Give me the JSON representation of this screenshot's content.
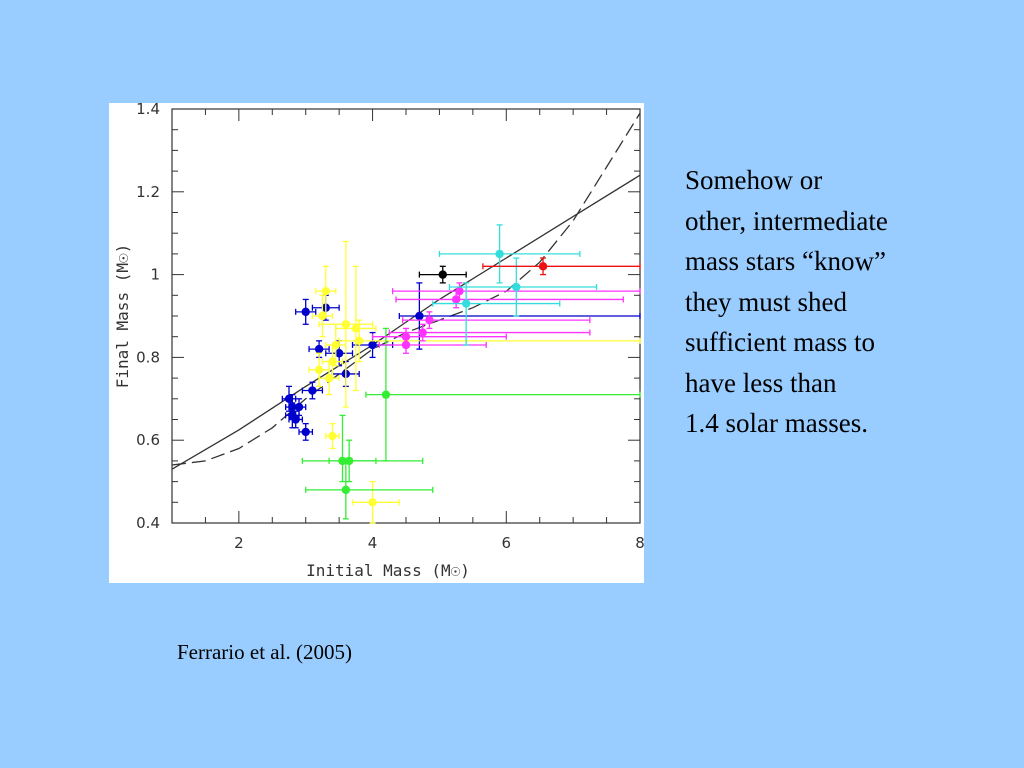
{
  "slide": {
    "background": "#99ccff",
    "body_lines": [
      "Somehow or",
      "other, intermediate",
      "mass stars “know”",
      "they must shed",
      "sufficient mass to",
      "have less than",
      "1.4 solar masses."
    ],
    "citation": "Ferrario et al. (2005)"
  },
  "chart_data": {
    "type": "scatter",
    "xlabel": "Initial Mass (M☉)",
    "ylabel": "Final Mass (M☉)",
    "xlim": [
      1,
      8
    ],
    "ylim": [
      0.4,
      1.4
    ],
    "x_ticks": [
      2,
      4,
      6,
      8
    ],
    "x_tick_labels": [
      "2",
      "4",
      "6",
      "8"
    ],
    "y_ticks": [
      0.4,
      0.6,
      0.8,
      1.0,
      1.2,
      1.4
    ],
    "y_tick_labels": [
      "0.4",
      "0.6",
      "0.8",
      "1",
      "1.2",
      "1.4"
    ],
    "grid": false,
    "curves": [
      {
        "style": "solid",
        "color": "#333333",
        "x": [
          1,
          2,
          3,
          4,
          5,
          6,
          7,
          8
        ],
        "y": [
          0.53,
          0.625,
          0.73,
          0.83,
          0.94,
          1.04,
          1.14,
          1.24
        ]
      },
      {
        "style": "dashed",
        "color": "#333333",
        "x": [
          1,
          1.5,
          2,
          2.5,
          3,
          3.5,
          4,
          4.5,
          5,
          5.5,
          6,
          6.5,
          7,
          7.5,
          8
        ],
        "y": [
          0.54,
          0.55,
          0.58,
          0.63,
          0.7,
          0.76,
          0.82,
          0.86,
          0.89,
          0.92,
          0.96,
          1.03,
          1.13,
          1.26,
          1.39
        ]
      }
    ],
    "points": [
      {
        "color": "#0000cc",
        "x": 2.75,
        "y": 0.7,
        "xerr": [
          0.1,
          0.1
        ],
        "yerr": [
          0.03,
          0.03
        ]
      },
      {
        "color": "#0000cc",
        "x": 2.8,
        "y": 0.68,
        "xerr": [
          0.1,
          0.1
        ],
        "yerr": [
          0.03,
          0.03
        ]
      },
      {
        "color": "#0000cc",
        "x": 2.8,
        "y": 0.66,
        "xerr": [
          0.1,
          0.1
        ],
        "yerr": [
          0.03,
          0.03
        ]
      },
      {
        "color": "#0000cc",
        "x": 2.85,
        "y": 0.65,
        "xerr": [
          0.1,
          0.1
        ],
        "yerr": [
          0.02,
          0.02
        ]
      },
      {
        "color": "#0000cc",
        "x": 2.9,
        "y": 0.68,
        "xerr": [
          0.1,
          0.1
        ],
        "yerr": [
          0.02,
          0.02
        ]
      },
      {
        "color": "#0000cc",
        "x": 3.0,
        "y": 0.62,
        "xerr": [
          0.1,
          0.1
        ],
        "yerr": [
          0.02,
          0.02
        ]
      },
      {
        "color": "#0000cc",
        "x": 3.1,
        "y": 0.72,
        "xerr": [
          0.15,
          0.15
        ],
        "yerr": [
          0.02,
          0.02
        ]
      },
      {
        "color": "#0000cc",
        "x": 3.0,
        "y": 0.91,
        "xerr": [
          0.15,
          0.15
        ],
        "yerr": [
          0.03,
          0.03
        ]
      },
      {
        "color": "#0000cc",
        "x": 3.3,
        "y": 0.92,
        "xerr": [
          0.2,
          0.2
        ],
        "yerr": [
          0.03,
          0.03
        ]
      },
      {
        "color": "#0000cc",
        "x": 3.2,
        "y": 0.82,
        "xerr": [
          0.15,
          0.15
        ],
        "yerr": [
          0.02,
          0.02
        ]
      },
      {
        "color": "#0000cc",
        "x": 3.5,
        "y": 0.81,
        "xerr": [
          0.2,
          0.2
        ],
        "yerr": [
          0.03,
          0.03
        ]
      },
      {
        "color": "#0000cc",
        "x": 3.6,
        "y": 0.76,
        "xerr": [
          0.2,
          0.2
        ],
        "yerr": [
          0.03,
          0.03
        ]
      },
      {
        "color": "#0000cc",
        "x": 4.0,
        "y": 0.83,
        "xerr": [
          0.3,
          0.3
        ],
        "yerr": [
          0.03,
          0.03
        ]
      },
      {
        "color": "#0000cc",
        "x": 4.7,
        "y": 0.9,
        "xerr": [
          0.3,
          3.3
        ],
        "yerr": [
          0.08,
          0.08
        ]
      },
      {
        "color": "#ffff33",
        "x": 3.3,
        "y": 0.96,
        "xerr": [
          0.15,
          0.15
        ],
        "yerr": [
          0.06,
          0.06
        ]
      },
      {
        "color": "#ffff33",
        "x": 3.25,
        "y": 0.9,
        "xerr": [
          0.15,
          0.15
        ],
        "yerr": [
          0.05,
          0.05
        ]
      },
      {
        "color": "#ffff33",
        "x": 3.6,
        "y": 0.88,
        "xerr": [
          0.4,
          0.4
        ],
        "yerr": [
          0.2,
          0.2
        ]
      },
      {
        "color": "#ffff33",
        "x": 3.75,
        "y": 0.87,
        "xerr": [
          0.3,
          0.3
        ],
        "yerr": [
          0.15,
          0.15
        ]
      },
      {
        "color": "#ffff33",
        "x": 3.45,
        "y": 0.83,
        "xerr": [
          0.15,
          0.15
        ],
        "yerr": [
          0.05,
          0.05
        ]
      },
      {
        "color": "#ffff33",
        "x": 3.4,
        "y": 0.79,
        "xerr": [
          0.15,
          0.15
        ],
        "yerr": [
          0.04,
          0.04
        ]
      },
      {
        "color": "#ffff33",
        "x": 3.2,
        "y": 0.77,
        "xerr": [
          0.15,
          0.15
        ],
        "yerr": [
          0.04,
          0.04
        ]
      },
      {
        "color": "#ffff33",
        "x": 3.35,
        "y": 0.75,
        "xerr": [
          0.15,
          0.15
        ],
        "yerr": [
          0.04,
          0.04
        ]
      },
      {
        "color": "#ffff33",
        "x": 3.4,
        "y": 0.61,
        "xerr": [
          0.1,
          0.1
        ],
        "yerr": [
          0.03,
          0.03
        ]
      },
      {
        "color": "#ffff33",
        "x": 4.0,
        "y": 0.45,
        "xerr": [
          0.3,
          0.4
        ],
        "yerr": [
          0.05,
          0.05
        ]
      },
      {
        "color": "#ffff33",
        "x": 3.8,
        "y": 0.84,
        "xerr": [
          0.3,
          4.2
        ],
        "yerr": [
          0.05,
          0.05
        ]
      },
      {
        "color": "#33ee33",
        "x": 4.2,
        "y": 0.71,
        "xerr": [
          0.3,
          3.8
        ],
        "yerr": [
          0.16,
          0.16
        ]
      },
      {
        "color": "#33ee33",
        "x": 3.55,
        "y": 0.55,
        "xerr": [
          0.6,
          1.2
        ],
        "yerr": [
          0.05,
          0.11
        ]
      },
      {
        "color": "#33ee33",
        "x": 3.65,
        "y": 0.55,
        "xerr": [
          0.3,
          0.4
        ],
        "yerr": [
          0.05,
          0.05
        ]
      },
      {
        "color": "#33ee33",
        "x": 3.6,
        "y": 0.48,
        "xerr": [
          0.6,
          1.3
        ],
        "yerr": [
          0.07,
          0.07
        ]
      },
      {
        "color": "#ff33ff",
        "x": 4.5,
        "y": 0.85,
        "xerr": [
          0.5,
          1.5
        ],
        "yerr": [
          0.02,
          0.02
        ]
      },
      {
        "color": "#ff33ff",
        "x": 4.5,
        "y": 0.83,
        "xerr": [
          0.4,
          1.2
        ],
        "yerr": [
          0.02,
          0.02
        ]
      },
      {
        "color": "#ff33ff",
        "x": 4.75,
        "y": 0.86,
        "xerr": [
          0.5,
          2.5
        ],
        "yerr": [
          0.02,
          0.02
        ]
      },
      {
        "color": "#ff33ff",
        "x": 4.85,
        "y": 0.89,
        "xerr": [
          0.4,
          2.4
        ],
        "yerr": [
          0.02,
          0.02
        ]
      },
      {
        "color": "#ff33ff",
        "x": 5.25,
        "y": 0.94,
        "xerr": [
          0.9,
          2.5
        ],
        "yerr": [
          0.02,
          0.02
        ]
      },
      {
        "color": "#ff33ff",
        "x": 5.3,
        "y": 0.96,
        "xerr": [
          1.0,
          2.7
        ],
        "yerr": [
          0.02,
          0.02
        ]
      },
      {
        "color": "#33dddd",
        "x": 5.9,
        "y": 1.05,
        "xerr": [
          0.9,
          1.2
        ],
        "yerr": [
          0.07,
          0.07
        ]
      },
      {
        "color": "#33dddd",
        "x": 6.15,
        "y": 0.97,
        "xerr": [
          1.0,
          1.2
        ],
        "yerr": [
          0.07,
          0.07
        ]
      },
      {
        "color": "#33dddd",
        "x": 5.4,
        "y": 0.93,
        "xerr": [
          0.5,
          1.4
        ],
        "yerr": [
          0.1,
          0.05
        ]
      },
      {
        "color": "#000000",
        "x": 5.05,
        "y": 1.0,
        "xerr": [
          0.35,
          0.35
        ],
        "yerr": [
          0.02,
          0.02
        ]
      },
      {
        "color": "#ee1111",
        "x": 6.55,
        "y": 1.02,
        "xerr": [
          0.9,
          1.45
        ],
        "yerr": [
          0.02,
          0.02
        ]
      }
    ]
  }
}
